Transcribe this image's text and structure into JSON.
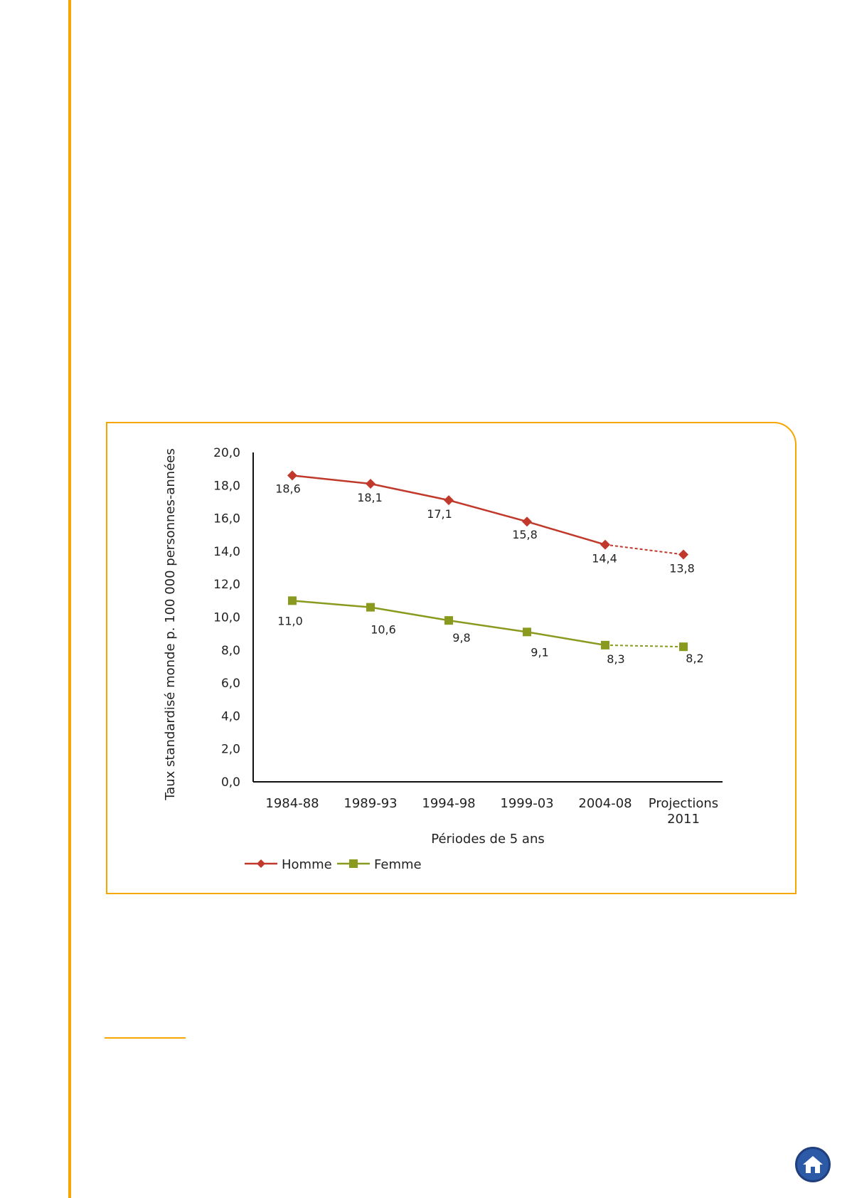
{
  "colors": {
    "accent": "#f7a600",
    "homme": "#c0392b",
    "femme": "#8a9a1e",
    "home_button": "#2c5aa6"
  },
  "home_button": {
    "icon": "home-icon"
  },
  "chart_data": {
    "type": "line",
    "categories": [
      [
        "1984-88"
      ],
      [
        "1989-93"
      ],
      [
        "1994-98"
      ],
      [
        "1999-03"
      ],
      [
        "2004-08"
      ],
      [
        "Projections",
        "2011"
      ]
    ],
    "series": [
      {
        "name": "Homme",
        "marker": "diamond",
        "color": "#c0392b",
        "values": [
          18.6,
          18.1,
          17.1,
          15.8,
          14.4,
          13.8
        ],
        "labels": [
          "18,6",
          "18,1",
          "17,1",
          "15,8",
          "14,4",
          "13,8"
        ]
      },
      {
        "name": "Femme",
        "marker": "square",
        "color": "#8a9a1e",
        "values": [
          11.0,
          10.6,
          9.8,
          9.1,
          8.3,
          8.2
        ],
        "labels": [
          "11,0",
          "10,6",
          "9,8",
          "9,1",
          "8,3",
          "8,2"
        ]
      }
    ],
    "projection_last_segment_dashed": true,
    "xlabel": "Périodes de 5 ans",
    "ylabel": "Taux standardisé monde p. 100 000 personnes-années",
    "ylim": [
      0,
      20
    ],
    "yticks": [
      "0,0",
      "2,0",
      "4,0",
      "6,0",
      "8,0",
      "10,0",
      "12,0",
      "14,0",
      "16,0",
      "18,0",
      "20,0"
    ],
    "grid": false,
    "legend_position": "bottom-left"
  }
}
